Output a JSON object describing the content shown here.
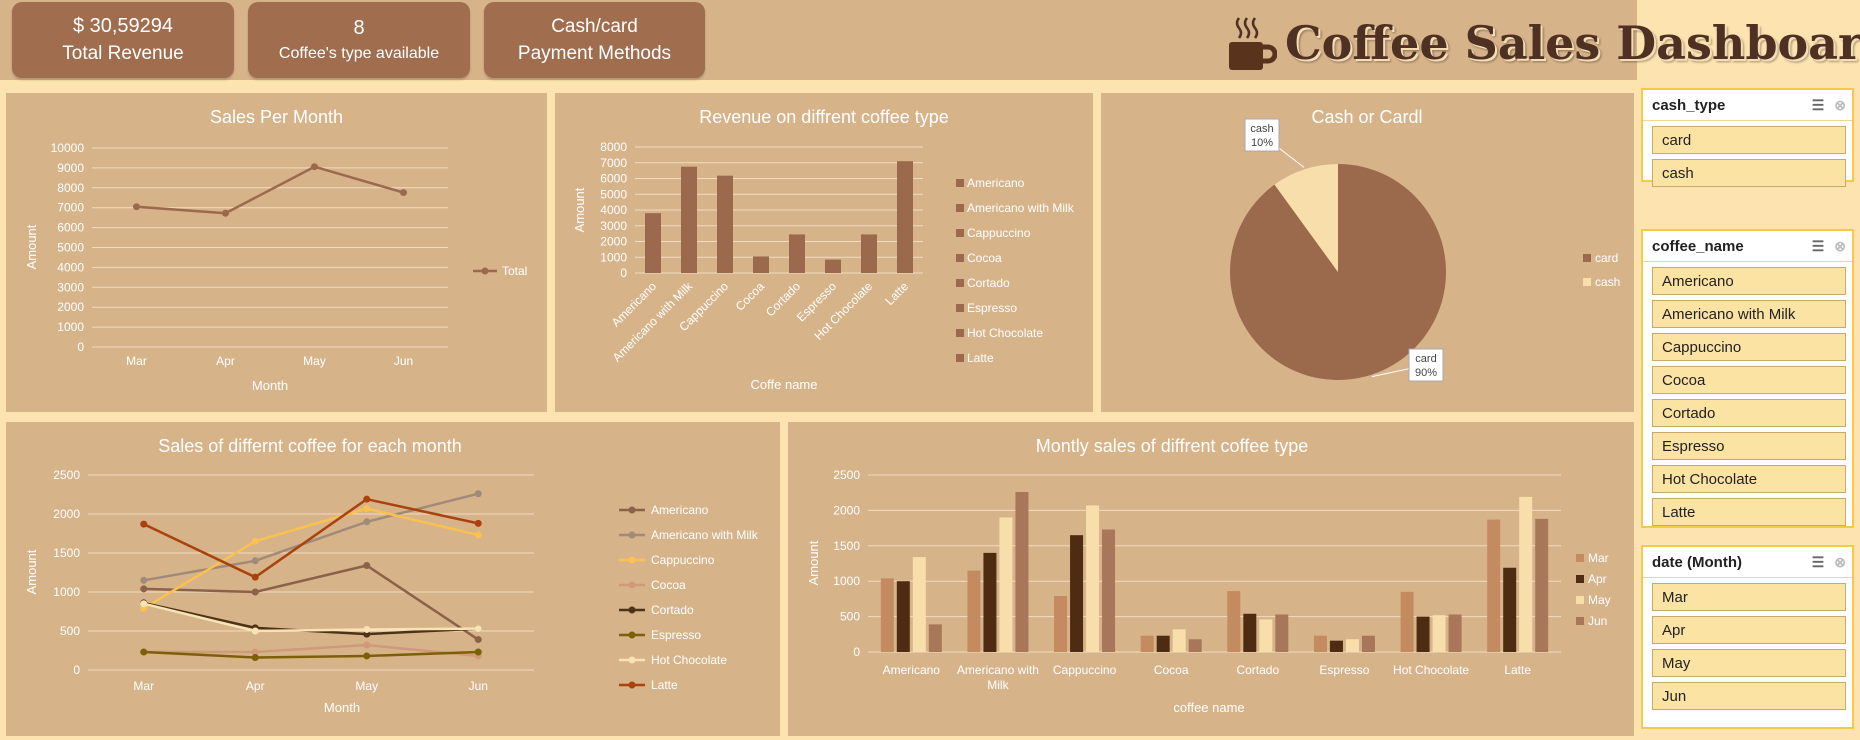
{
  "kpis": {
    "revenue_value": "$ 30,59294",
    "revenue_label": "Total Revenue",
    "types_value": "8",
    "types_label": "Coffee's type available",
    "payment_line1": "Cash/card",
    "payment_line2": "Payment Methods"
  },
  "dashboard_title": "Coffee Sales Dashboard",
  "colors": {
    "panel_bg": "#d7b38a",
    "page_bg": "#fce3b0",
    "kpi_bg": "#a06e4f",
    "title_text": "#4e3122",
    "slicer_item": "#fbe3a3",
    "slicer_border": "#f7c94a"
  },
  "icons": {
    "title_icon": "coffee-cup-icon",
    "multi_select": "multi-select-icon",
    "clear_filter": "clear-filter-icon"
  },
  "chart_data": [
    {
      "id": "sales_per_month",
      "type": "line",
      "title": "Sales Per Month",
      "xlabel": "Month",
      "ylabel": "Amount",
      "categories": [
        "Mar",
        "Apr",
        "May",
        "Jun"
      ],
      "series": [
        {
          "name": "Total",
          "values": [
            7050,
            6720,
            9060,
            7760
          ],
          "color": "#9b6a4c"
        }
      ],
      "ylim": [
        0,
        10000
      ],
      "yticks": [
        0,
        1000,
        2000,
        3000,
        4000,
        5000,
        6000,
        7000,
        8000,
        9000,
        10000
      ],
      "grid": true,
      "legend": "right"
    },
    {
      "id": "revenue_by_type",
      "type": "bar",
      "title": "Revenue on diffrent coffee type",
      "xlabel": "Coffe name",
      "ylabel": "Amount",
      "categories": [
        "Americano",
        "Americano with Milk",
        "Cappuccino",
        "Cocoa",
        "Cortado",
        "Espresso",
        "Hot Chocolate",
        "Latte"
      ],
      "values": [
        3800,
        6750,
        6180,
        1050,
        2450,
        850,
        2450,
        7100
      ],
      "ylim": [
        0,
        8000
      ],
      "yticks": [
        0,
        1000,
        2000,
        3000,
        4000,
        5000,
        6000,
        7000,
        8000
      ],
      "grid": true,
      "legend": "right",
      "color": "#9b6a4c"
    },
    {
      "id": "cash_or_card",
      "type": "pie",
      "title": "Cash or Cardl",
      "slices": [
        {
          "name": "card",
          "value": 90,
          "label": "90%",
          "color": "#9b6a4c"
        },
        {
          "name": "cash",
          "value": 10,
          "label": "10%",
          "color": "#f8deaa"
        }
      ],
      "legend": "right"
    },
    {
      "id": "sales_each_month",
      "type": "line",
      "title": "Sales of differnt coffee for each month",
      "xlabel": "Month",
      "ylabel": "Amount",
      "categories": [
        "Mar",
        "Apr",
        "May",
        "Jun"
      ],
      "ylim": [
        0,
        2500
      ],
      "yticks": [
        0,
        500,
        1000,
        1500,
        2000,
        2500
      ],
      "grid": true,
      "legend": "right",
      "series": [
        {
          "name": "Americano",
          "values": [
            1040,
            1000,
            1340,
            390
          ],
          "color": "#8b6248"
        },
        {
          "name": "Americano with Milk",
          "values": [
            1150,
            1400,
            1900,
            2260
          ],
          "color": "#a08a78"
        },
        {
          "name": "Cappuccino",
          "values": [
            790,
            1650,
            2070,
            1730
          ],
          "color": "#f9c14f"
        },
        {
          "name": "Cocoa",
          "values": [
            230,
            230,
            320,
            180
          ],
          "color": "#d09a7a"
        },
        {
          "name": "Cortado",
          "values": [
            860,
            540,
            460,
            530
          ],
          "color": "#4e3216"
        },
        {
          "name": "Espresso",
          "values": [
            230,
            160,
            180,
            230
          ],
          "color": "#7b6008"
        },
        {
          "name": "Hot Chocolate",
          "values": [
            850,
            500,
            520,
            530
          ],
          "color": "#f8e3b4"
        },
        {
          "name": "Latte",
          "values": [
            1870,
            1190,
            2190,
            1880
          ],
          "color": "#a9420c"
        }
      ]
    },
    {
      "id": "monthly_sales_by_type",
      "type": "bar",
      "title": "Montly sales of diffrent coffee type",
      "xlabel": "coffee name",
      "ylabel": "Amount",
      "categories": [
        "Americano",
        "Americano with Milk",
        "Cappuccino",
        "Cocoa",
        "Cortado",
        "Espresso",
        "Hot Chocolate",
        "Latte"
      ],
      "ylim": [
        0,
        2500
      ],
      "yticks": [
        0,
        500,
        1000,
        1500,
        2000,
        2500
      ],
      "grid": true,
      "legend": "right",
      "series": [
        {
          "name": "Mar",
          "values": [
            1040,
            1150,
            790,
            230,
            860,
            230,
            850,
            1870
          ],
          "color": "#c48a60"
        },
        {
          "name": "Apr",
          "values": [
            1000,
            1400,
            1650,
            230,
            540,
            160,
            500,
            1190
          ],
          "color": "#4e2c12"
        },
        {
          "name": "May",
          "values": [
            1340,
            1900,
            2070,
            320,
            460,
            180,
            520,
            2190
          ],
          "color": "#f8deaa"
        },
        {
          "name": "Jun",
          "values": [
            390,
            2260,
            1730,
            180,
            530,
            230,
            530,
            1880
          ],
          "color": "#a8775a"
        }
      ]
    }
  ],
  "slicers": [
    {
      "title": "cash_type",
      "items": [
        "card",
        "cash"
      ]
    },
    {
      "title": "coffee_name",
      "items": [
        "Americano",
        "Americano with Milk",
        "Cappuccino",
        "Cocoa",
        "Cortado",
        "Espresso",
        "Hot Chocolate",
        "Latte"
      ]
    },
    {
      "title": "date (Month)",
      "items": [
        "Mar",
        "Apr",
        "May",
        "Jun"
      ]
    }
  ]
}
